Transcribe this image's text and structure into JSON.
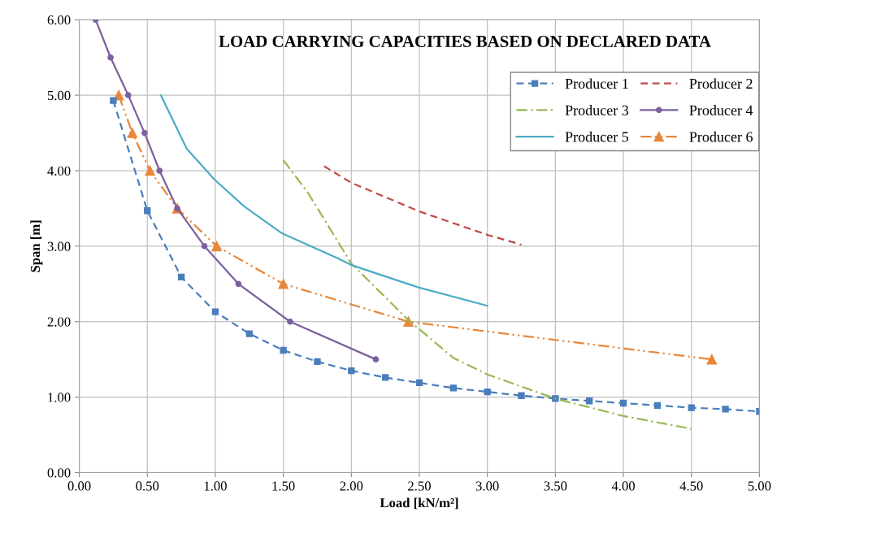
{
  "chart_data": {
    "type": "line",
    "title": "LOAD CARRYING CAPACITIES BASED ON DECLARED DATA",
    "xlabel": "Load [kN/m²]",
    "ylabel": "Span [m]",
    "xlim": [
      0,
      5
    ],
    "ylim": [
      0,
      6
    ],
    "xticks": [
      {
        "value": 0,
        "label": "0.00"
      },
      {
        "value": 0.5,
        "label": "0.50"
      },
      {
        "value": 1,
        "label": "1.00"
      },
      {
        "value": 1.5,
        "label": "1.50"
      },
      {
        "value": 2,
        "label": "2.00"
      },
      {
        "value": 2.5,
        "label": "2.50"
      },
      {
        "value": 3,
        "label": "3.00"
      },
      {
        "value": 3.5,
        "label": "3.50"
      },
      {
        "value": 4,
        "label": "4.00"
      },
      {
        "value": 4.5,
        "label": "4.50"
      },
      {
        "value": 5,
        "label": "5.00"
      }
    ],
    "yticks": [
      {
        "value": 0,
        "label": "0.00"
      },
      {
        "value": 1,
        "label": "1.00"
      },
      {
        "value": 2,
        "label": "2.00"
      },
      {
        "value": 3,
        "label": "3.00"
      },
      {
        "value": 4,
        "label": "4.00"
      },
      {
        "value": 5,
        "label": "5.00"
      },
      {
        "value": 6,
        "label": "6.00"
      }
    ],
    "grid": true,
    "legend": "top right",
    "series": [
      {
        "name": "Producer 1",
        "color": "#4a7ebb",
        "marker": "square",
        "line_style": "dashed",
        "x": [
          0.25,
          0.5,
          0.75,
          1.0,
          1.25,
          1.5,
          1.75,
          2.0,
          2.25,
          2.5,
          2.75,
          3.0,
          3.25,
          3.5,
          3.75,
          4.0,
          4.25,
          4.5,
          4.75,
          5.0
        ],
        "values": [
          4.93,
          3.47,
          2.59,
          2.13,
          1.84,
          1.62,
          1.47,
          1.35,
          1.26,
          1.19,
          1.12,
          1.07,
          1.02,
          0.98,
          0.95,
          0.92,
          0.89,
          0.86,
          0.84,
          0.81
        ]
      },
      {
        "name": "Producer 2",
        "color": "#be4b48",
        "marker": "none",
        "line_style": "dashed",
        "x": [
          1.8,
          2.0,
          2.5,
          3.0,
          3.25
        ],
        "values": [
          4.06,
          3.84,
          3.46,
          3.15,
          3.02
        ]
      },
      {
        "name": "Producer 3",
        "color": "#98b954",
        "marker": "none",
        "line_style": "dashdot",
        "x": [
          1.5,
          1.68,
          2.0,
          2.42,
          2.75,
          3.0,
          3.5,
          4.0,
          4.5
        ],
        "values": [
          4.14,
          3.71,
          2.77,
          2.02,
          1.52,
          1.3,
          0.98,
          0.75,
          0.58
        ]
      },
      {
        "name": "Producer 4",
        "color": "#7d5fa0",
        "marker": "circle",
        "line_style": "solid",
        "x": [
          0.12,
          0.23,
          0.36,
          0.48,
          0.59,
          0.72,
          0.92,
          1.17,
          1.55,
          2.18
        ],
        "values": [
          6.0,
          5.5,
          5.0,
          4.5,
          4.0,
          3.5,
          3.0,
          2.5,
          2.0,
          1.5
        ]
      },
      {
        "name": "Producer 5",
        "color": "#4bacc6",
        "marker": "none",
        "line_style": "solid",
        "x": [
          0.6,
          0.79,
          0.99,
          1.21,
          1.49,
          1.9,
          2.0,
          2.5,
          3.0
        ],
        "values": [
          5.0,
          4.29,
          3.89,
          3.53,
          3.17,
          2.84,
          2.75,
          2.45,
          2.21
        ]
      },
      {
        "name": "Producer 6",
        "color": "#e8873a",
        "marker": "triangle",
        "line_style": "dashdotdot",
        "x": [
          0.29,
          0.39,
          0.52,
          0.72,
          1.01,
          1.5,
          2.42,
          4.65
        ],
        "values": [
          5.0,
          4.5,
          4.0,
          3.5,
          3.0,
          2.5,
          2.0,
          1.5
        ]
      }
    ]
  }
}
